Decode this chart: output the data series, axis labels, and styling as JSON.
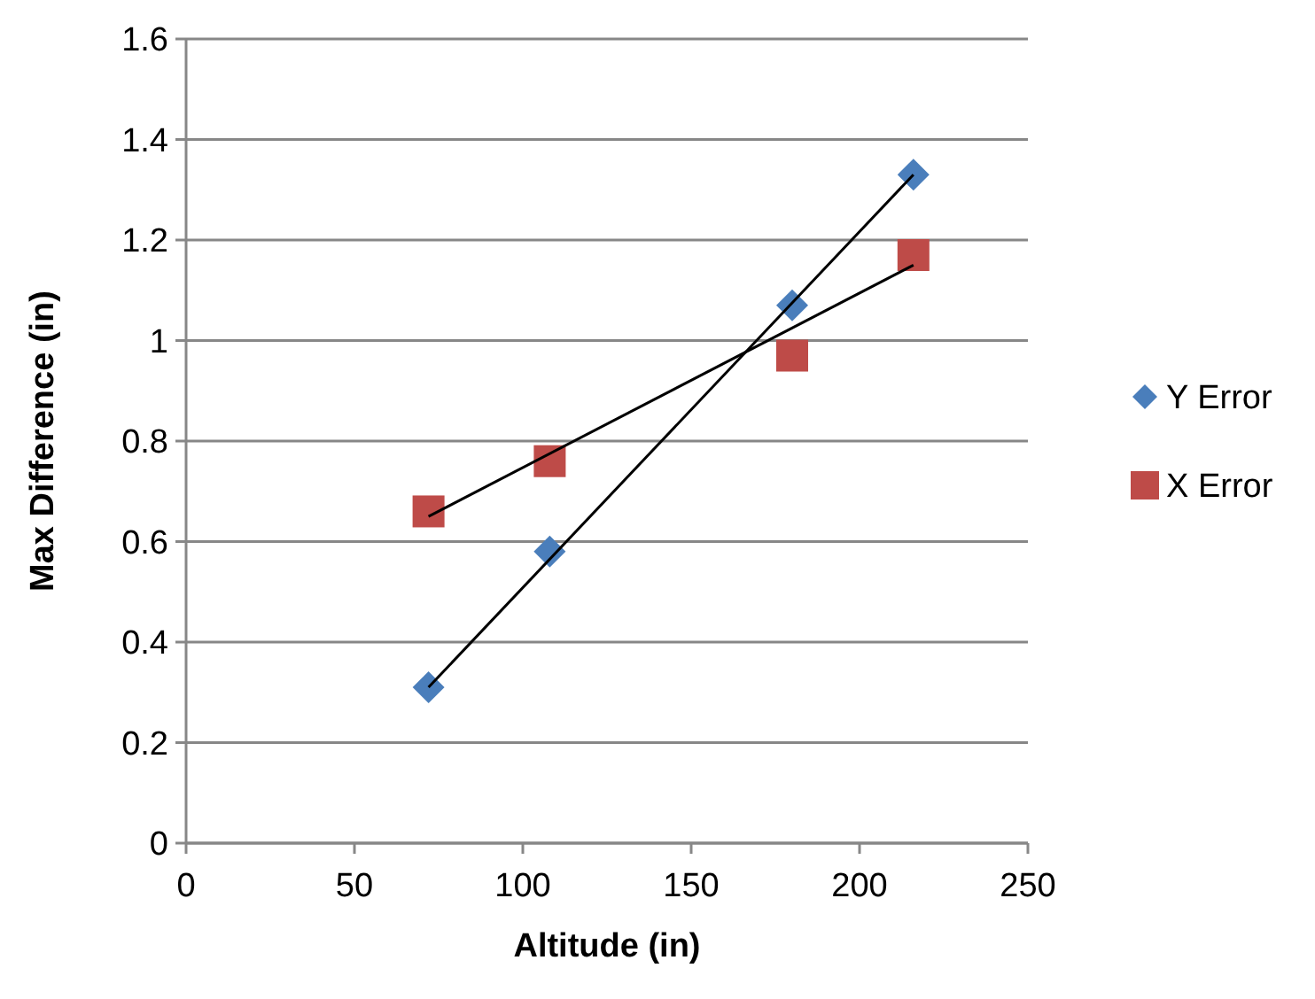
{
  "chart_data": {
    "type": "scatter",
    "xlabel": "Altitude (in)",
    "ylabel": "Max Difference (in)",
    "xlim": [
      0,
      250
    ],
    "xticks": [
      0,
      50,
      100,
      150,
      200,
      250
    ],
    "ylim": [
      0,
      1.6
    ],
    "yticks": [
      0,
      0.2,
      0.4,
      0.6,
      0.8,
      1,
      1.2,
      1.4,
      1.6
    ],
    "grid": "y",
    "legend": "right",
    "series": [
      {
        "name": "Y Error",
        "color": "#4a7ebb",
        "marker": "diamond",
        "x": [
          72,
          108,
          180,
          216
        ],
        "values": [
          0.31,
          0.58,
          1.07,
          1.33
        ]
      },
      {
        "name": "X Error",
        "color": "#be4b48",
        "marker": "square",
        "x": [
          72,
          108,
          180,
          216
        ],
        "values": [
          0.66,
          0.76,
          0.97,
          1.17
        ]
      },
      {
        "type": "line",
        "color": "#000000",
        "marker": "none",
        "x": [
          72,
          216
        ],
        "values": [
          0.31,
          1.33
        ]
      },
      {
        "type": "line",
        "color": "#000000",
        "marker": "none",
        "x": [
          72,
          216
        ],
        "values": [
          0.65,
          1.15
        ]
      }
    ]
  }
}
